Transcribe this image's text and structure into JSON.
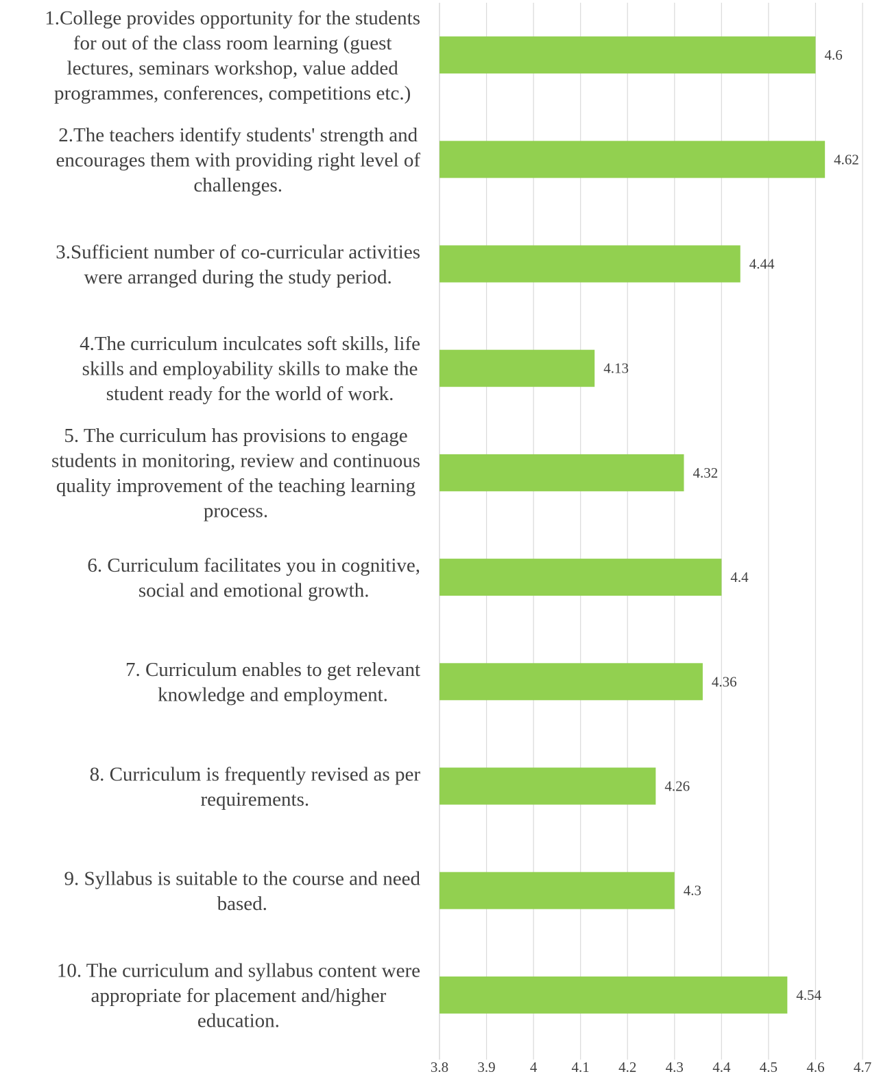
{
  "chart_data": {
    "type": "bar",
    "orientation": "horizontal",
    "title": "",
    "xlabel": "",
    "ylabel": "",
    "xlim": [
      3.8,
      4.7
    ],
    "x_ticks": [
      "3.8",
      "3.9",
      "4",
      "4.1",
      "4.2",
      "4.3",
      "4.4",
      "4.5",
      "4.6",
      "4.7"
    ],
    "grid": "vertical",
    "legend": "none",
    "bar_color": "#92d050",
    "grid_color": "#d9d9d9",
    "categories": [
      [
        "1.College provides opportunity for the students",
        "for out of the class room learning (guest",
        "lectures, seminars workshop, value added",
        "programmes,  conferences, competitions etc.)"
      ],
      [
        "2.The teachers identify students' strength and",
        "encourages them with providing right level of",
        "challenges."
      ],
      [
        "3.Sufficient number of co-curricular activities",
        "were arranged during the study period."
      ],
      [
        "4.The curriculum inculcates soft skills, life",
        "skills and employability skills to make the",
        "student ready for the world of work."
      ],
      [
        "5. The curriculum has provisions to engage",
        "students in monitoring, review and continuous",
        "quality improvement of the teaching learning",
        "process."
      ],
      [
        "6. Curriculum facilitates you in cognitive,",
        "social and emotional growth."
      ],
      [
        "7. Curriculum enables to get relevant",
        "knowledge and employment."
      ],
      [
        "8. Curriculum is frequently revised as per",
        "requirements."
      ],
      [
        "9. Syllabus is suitable to the course and need",
        "based."
      ],
      [
        "10. The curriculum and syllabus content were",
        "appropriate for placement and/higher",
        "education."
      ]
    ],
    "values": [
      4.6,
      4.62,
      4.44,
      4.13,
      4.32,
      4.4,
      4.36,
      4.26,
      4.3,
      4.54
    ],
    "value_labels": [
      "4.6",
      "4.62",
      "4.44",
      "4.13",
      "4.32",
      "4.4",
      "4.36",
      "4.26",
      "4.3",
      "4.54"
    ]
  }
}
